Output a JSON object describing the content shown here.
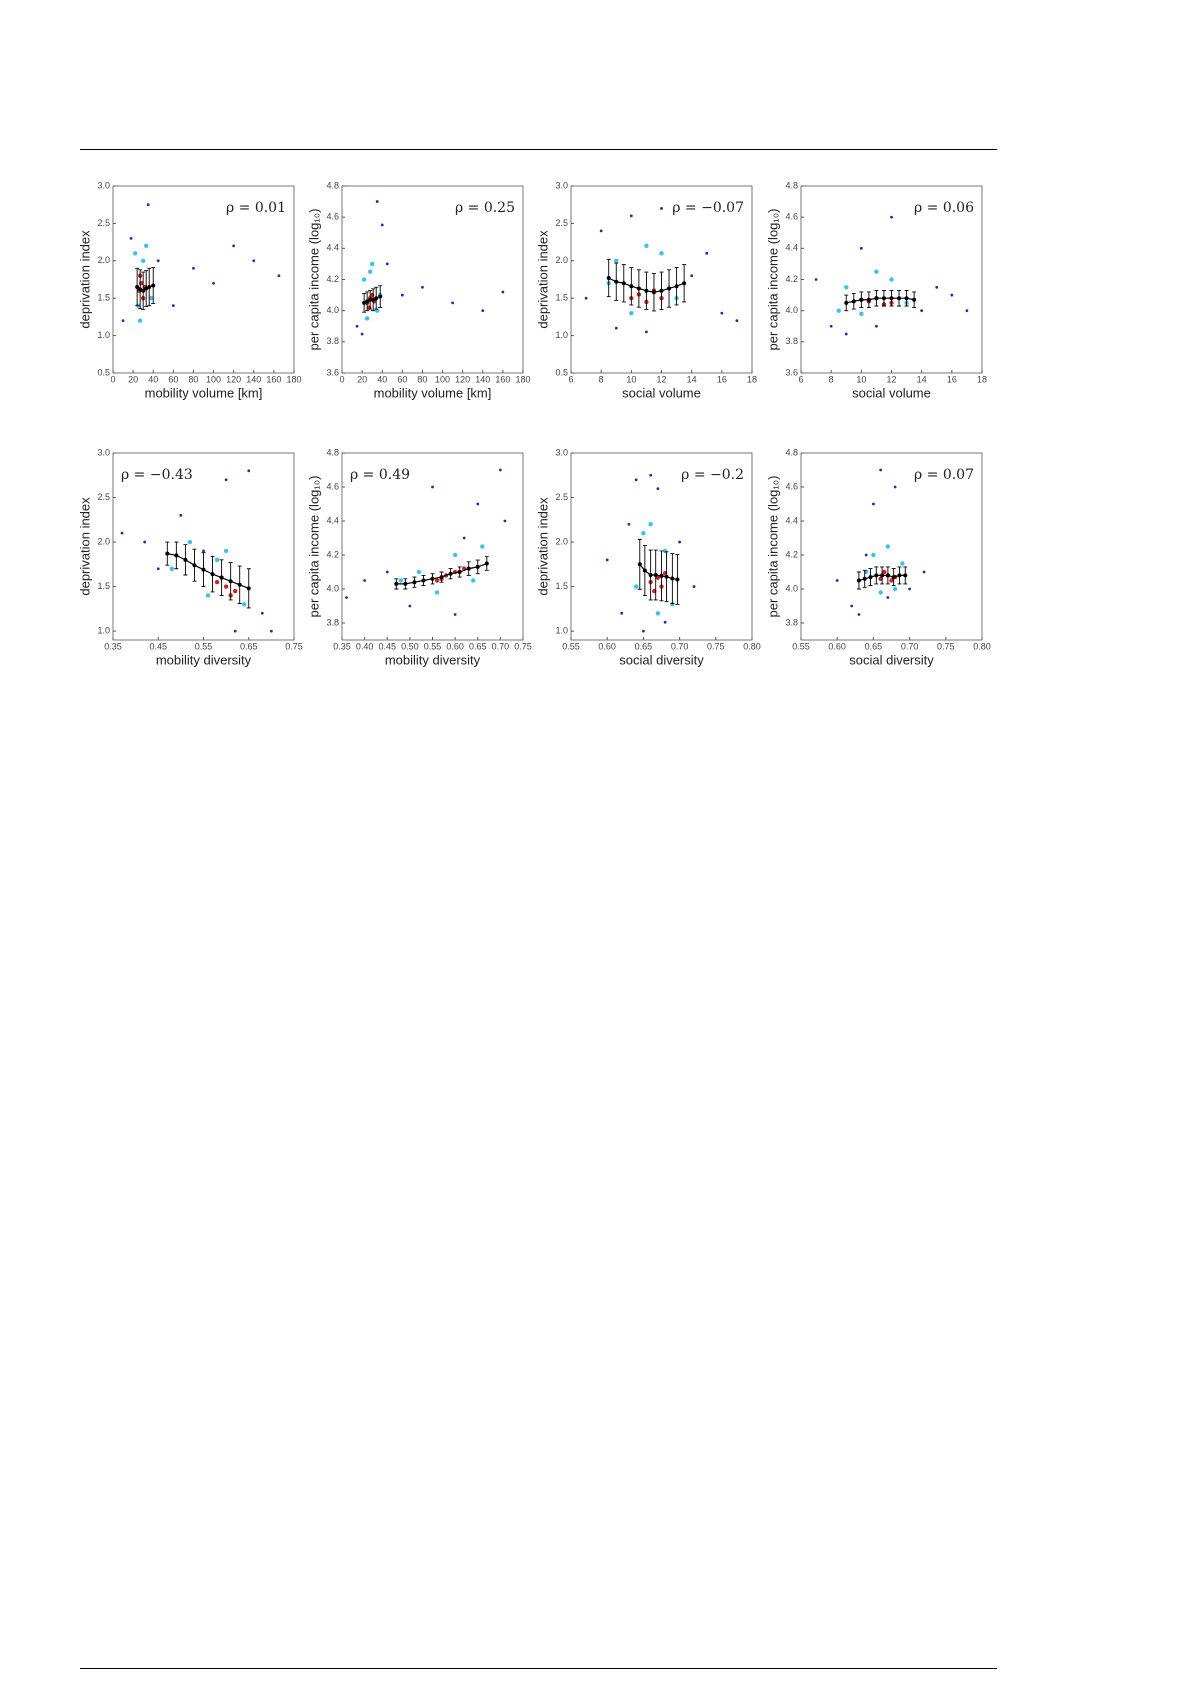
{
  "chart_data": [
    {
      "type": "scatter",
      "xlabel": "mobility volume [km]",
      "ylabel": "deprivation index",
      "annotation": "ρ = 0.01",
      "annotation_corner": "upper right",
      "xlim": [
        0,
        180
      ],
      "xticks": [
        0,
        20,
        40,
        60,
        80,
        100,
        120,
        140,
        160,
        180
      ],
      "ylim": [
        0.5,
        3.0
      ],
      "yticks": [
        0.5,
        {
          "value": 1,
          "label": "1.0"
        },
        1.5,
        {
          "value": 2,
          "label": "2.0"
        },
        2.5,
        {
          "value": 3,
          "label": "3.0"
        }
      ],
      "series": [
        {
          "color": "#2626b8",
          "x": [
            10,
            18,
            45,
            60,
            80,
            100,
            120,
            140,
            165,
            35
          ],
          "values": [
            1.2,
            2.3,
            2.0,
            1.4,
            1.9,
            1.7,
            2.2,
            2.0,
            1.8,
            2.75
          ]
        },
        {
          "color": "#35c4ee",
          "x": [
            22,
            27,
            33,
            38,
            25,
            30
          ],
          "values": [
            2.1,
            1.2,
            2.2,
            1.5,
            1.4,
            2.0
          ]
        },
        {
          "color": "#d4221a",
          "x": [
            26,
            28,
            30,
            27,
            32
          ],
          "values": [
            1.6,
            1.7,
            1.5,
            1.8,
            1.65
          ]
        }
      ],
      "mean": {
        "color": "#000000",
        "x": [
          24,
          27,
          30,
          33,
          36,
          40
        ],
        "values": [
          1.65,
          1.62,
          1.6,
          1.63,
          1.65,
          1.67
        ],
        "errors": [
          0.25,
          0.26,
          0.25,
          0.24,
          0.25,
          0.24
        ]
      }
    },
    {
      "type": "scatter",
      "xlabel": "mobility volume [km]",
      "ylabel": "per capita income (log₁₀)",
      "annotation": "ρ = 0.25",
      "annotation_corner": "upper right",
      "xlim": [
        0,
        180
      ],
      "xticks": [
        0,
        20,
        40,
        60,
        80,
        100,
        120,
        140,
        160,
        180
      ],
      "ylim": [
        3.6,
        4.8
      ],
      "yticks": [
        3.6,
        3.8,
        {
          "value": 4,
          "label": "4.0"
        },
        4.2,
        4.4,
        4.6,
        4.8
      ],
      "series": [
        {
          "color": "#2626b8",
          "x": [
            15,
            20,
            45,
            60,
            80,
            110,
            140,
            160,
            40,
            35
          ],
          "values": [
            3.9,
            3.85,
            4.3,
            4.1,
            4.15,
            4.05,
            4.0,
            4.12,
            4.55,
            4.7
          ]
        },
        {
          "color": "#35c4ee",
          "x": [
            22,
            25,
            30,
            35,
            28,
            38
          ],
          "values": [
            4.2,
            3.95,
            4.3,
            4.0,
            4.25,
            4.1
          ]
        },
        {
          "color": "#d4221a",
          "x": [
            25,
            28,
            30,
            27,
            32
          ],
          "values": [
            4.05,
            4.08,
            4.1,
            4.02,
            4.06
          ]
        }
      ],
      "mean": {
        "color": "#000000",
        "x": [
          22,
          25,
          28,
          31,
          34,
          38
        ],
        "values": [
          4.05,
          4.06,
          4.07,
          4.07,
          4.08,
          4.09
        ],
        "errors": [
          0.06,
          0.06,
          0.06,
          0.07,
          0.07,
          0.07
        ]
      }
    },
    {
      "type": "scatter",
      "xlabel": "social volume",
      "ylabel": "deprivation index",
      "annotation": "ρ = −0.07",
      "annotation_corner": "upper right",
      "xlim": [
        6,
        18
      ],
      "xticks": [
        6,
        8,
        10,
        12,
        14,
        16,
        18
      ],
      "ylim": [
        0.5,
        3.0
      ],
      "yticks": [
        0.5,
        {
          "value": 1,
          "label": "1.0"
        },
        1.5,
        {
          "value": 2,
          "label": "2.0"
        },
        2.5,
        {
          "value": 3,
          "label": "3.0"
        }
      ],
      "series": [
        {
          "color": "#2626b8",
          "x": [
            7,
            8,
            9,
            12,
            14,
            15,
            16,
            17,
            10,
            11
          ],
          "values": [
            1.5,
            2.4,
            1.1,
            2.7,
            1.8,
            2.1,
            1.3,
            1.2,
            2.6,
            1.05
          ]
        },
        {
          "color": "#35c4ee",
          "x": [
            9,
            10,
            12,
            13,
            11,
            8.5
          ],
          "values": [
            2.0,
            1.3,
            2.1,
            1.5,
            2.2,
            1.7
          ]
        },
        {
          "color": "#d4221a",
          "x": [
            10.5,
            11,
            11.5,
            10,
            12
          ],
          "values": [
            1.55,
            1.45,
            1.6,
            1.5,
            1.5
          ]
        }
      ],
      "mean": {
        "color": "#000000",
        "x": [
          8.5,
          9,
          9.5,
          10,
          10.5,
          11,
          11.5,
          12,
          12.5,
          13,
          13.5
        ],
        "values": [
          1.77,
          1.72,
          1.7,
          1.66,
          1.63,
          1.6,
          1.58,
          1.6,
          1.63,
          1.66,
          1.7
        ],
        "errors": [
          0.25,
          0.25,
          0.25,
          0.25,
          0.25,
          0.25,
          0.25,
          0.25,
          0.25,
          0.25,
          0.25
        ]
      }
    },
    {
      "type": "scatter",
      "xlabel": "social volume",
      "ylabel": "per capita income (log₁₀)",
      "annotation": "ρ = 0.06",
      "annotation_corner": "upper right",
      "xlim": [
        6,
        18
      ],
      "xticks": [
        6,
        8,
        10,
        12,
        14,
        16,
        18
      ],
      "ylim": [
        3.6,
        4.8
      ],
      "yticks": [
        3.6,
        3.8,
        {
          "value": 4,
          "label": "4.0"
        },
        4.2,
        4.4,
        4.6,
        4.8
      ],
      "series": [
        {
          "color": "#2626b8",
          "x": [
            7,
            8,
            9,
            12,
            14,
            15,
            16,
            17,
            10,
            11
          ],
          "values": [
            4.2,
            3.9,
            3.85,
            4.6,
            4.0,
            4.15,
            4.1,
            4.0,
            4.4,
            3.9
          ]
        },
        {
          "color": "#35c4ee",
          "x": [
            9,
            10,
            12,
            13,
            11,
            8.5
          ],
          "values": [
            4.15,
            3.98,
            4.2,
            4.05,
            4.25,
            4.0
          ]
        },
        {
          "color": "#d4221a",
          "x": [
            10.5,
            11,
            11.5,
            10,
            12
          ],
          "values": [
            4.06,
            4.08,
            4.04,
            4.07,
            4.05
          ]
        }
      ],
      "mean": {
        "color": "#000000",
        "x": [
          9,
          9.5,
          10,
          10.5,
          11,
          11.5,
          12,
          12.5,
          13,
          13.5
        ],
        "values": [
          4.05,
          4.06,
          4.07,
          4.07,
          4.08,
          4.08,
          4.08,
          4.08,
          4.08,
          4.07
        ],
        "errors": [
          0.05,
          0.05,
          0.05,
          0.05,
          0.05,
          0.05,
          0.05,
          0.05,
          0.05,
          0.05
        ]
      }
    },
    {
      "type": "scatter",
      "xlabel": "mobility diversity",
      "ylabel": "deprivation index",
      "annotation": "ρ = −0.43",
      "annotation_corner": "upper left",
      "xlim": [
        0.35,
        0.75
      ],
      "xticks": [
        0.35,
        0.45,
        0.55,
        0.65,
        0.75
      ],
      "ylim": [
        0.9,
        3.0
      ],
      "yticks": [
        {
          "value": 1,
          "label": "1.0"
        },
        1.5,
        {
          "value": 2,
          "label": "2.0"
        },
        2.5,
        {
          "value": 3,
          "label": "3.0"
        }
      ],
      "series": [
        {
          "color": "#2626b8",
          "x": [
            0.37,
            0.42,
            0.45,
            0.5,
            0.6,
            0.65,
            0.68,
            0.7,
            0.55,
            0.62
          ],
          "values": [
            2.1,
            2.0,
            1.7,
            2.3,
            2.7,
            2.8,
            1.2,
            1.0,
            1.9,
            1.0
          ]
        },
        {
          "color": "#35c4ee",
          "x": [
            0.48,
            0.52,
            0.56,
            0.6,
            0.64,
            0.58
          ],
          "values": [
            1.7,
            2.0,
            1.4,
            1.9,
            1.3,
            1.8
          ]
        },
        {
          "color": "#d4221a",
          "x": [
            0.58,
            0.6,
            0.62,
            0.59,
            0.61
          ],
          "values": [
            1.55,
            1.5,
            1.45,
            1.6,
            1.4
          ]
        }
      ],
      "mean": {
        "color": "#000000",
        "x": [
          0.47,
          0.49,
          0.51,
          0.53,
          0.55,
          0.57,
          0.59,
          0.61,
          0.63,
          0.65
        ],
        "values": [
          1.87,
          1.85,
          1.8,
          1.74,
          1.69,
          1.64,
          1.6,
          1.56,
          1.52,
          1.48
        ],
        "errors": [
          0.13,
          0.15,
          0.17,
          0.18,
          0.19,
          0.2,
          0.2,
          0.21,
          0.21,
          0.22
        ]
      }
    },
    {
      "type": "scatter",
      "xlabel": "mobility diversity",
      "ylabel": "per capita income (log₁₀)",
      "annotation": "ρ = 0.49",
      "annotation_corner": "upper left",
      "xlim": [
        0.35,
        0.75
      ],
      "xticks": [
        0.35,
        {
          "value": 0.4,
          "label": "0.40"
        },
        0.45,
        {
          "value": 0.5,
          "label": "0.50"
        },
        0.55,
        {
          "value": 0.6,
          "label": "0.60"
        },
        0.65,
        {
          "value": 0.7,
          "label": "0.70"
        },
        0.75
      ],
      "ylim": [
        3.7,
        4.8
      ],
      "yticks": [
        3.8,
        {
          "value": 4,
          "label": "4.0"
        },
        4.2,
        4.4,
        4.6,
        4.8
      ],
      "series": [
        {
          "color": "#2626b8",
          "x": [
            0.36,
            0.4,
            0.45,
            0.5,
            0.55,
            0.6,
            0.65,
            0.7,
            0.71,
            0.62
          ],
          "values": [
            3.95,
            4.05,
            4.1,
            3.9,
            4.6,
            3.85,
            4.5,
            4.7,
            4.4,
            4.3
          ]
        },
        {
          "color": "#35c4ee",
          "x": [
            0.48,
            0.52,
            0.56,
            0.6,
            0.64,
            0.66
          ],
          "values": [
            4.05,
            4.1,
            3.98,
            4.2,
            4.05,
            4.25
          ]
        },
        {
          "color": "#d4221a",
          "x": [
            0.56,
            0.58,
            0.6,
            0.57,
            0.62
          ],
          "values": [
            4.05,
            4.08,
            4.1,
            4.06,
            4.12
          ]
        }
      ],
      "mean": {
        "color": "#000000",
        "x": [
          0.47,
          0.49,
          0.51,
          0.53,
          0.55,
          0.57,
          0.59,
          0.61,
          0.63,
          0.65,
          0.67
        ],
        "values": [
          4.03,
          4.03,
          4.04,
          4.05,
          4.06,
          4.07,
          4.09,
          4.1,
          4.12,
          4.13,
          4.15
        ],
        "errors": [
          0.03,
          0.03,
          0.03,
          0.03,
          0.03,
          0.03,
          0.03,
          0.03,
          0.04,
          0.04,
          0.04
        ]
      }
    },
    {
      "type": "scatter",
      "xlabel": "social diversity",
      "ylabel": "deprivation index",
      "annotation": "ρ = −0.2",
      "annotation_corner": "upper right",
      "xlim": [
        0.55,
        0.8
      ],
      "xticks": [
        0.55,
        {
          "value": 0.6,
          "label": "0.60"
        },
        0.65,
        {
          "value": 0.7,
          "label": "0.70"
        },
        0.75,
        {
          "value": 0.8,
          "label": "0.80"
        }
      ],
      "ylim": [
        0.9,
        3.0
      ],
      "yticks": [
        {
          "value": 1,
          "label": "1.0"
        },
        1.5,
        {
          "value": 2,
          "label": "2.0"
        },
        2.5,
        {
          "value": 3,
          "label": "3.0"
        }
      ],
      "series": [
        {
          "color": "#2626b8",
          "x": [
            0.6,
            0.62,
            0.63,
            0.64,
            0.66,
            0.68,
            0.7,
            0.72,
            0.65,
            0.67
          ],
          "values": [
            1.8,
            1.2,
            2.2,
            2.7,
            2.75,
            1.1,
            2.0,
            1.5,
            1.0,
            2.6
          ]
        },
        {
          "color": "#35c4ee",
          "x": [
            0.64,
            0.65,
            0.68,
            0.69,
            0.66,
            0.67
          ],
          "values": [
            1.5,
            2.1,
            1.9,
            1.3,
            2.2,
            1.2
          ]
        },
        {
          "color": "#d4221a",
          "x": [
            0.66,
            0.67,
            0.675,
            0.665,
            0.68
          ],
          "values": [
            1.55,
            1.6,
            1.5,
            1.45,
            1.65
          ]
        }
      ],
      "mean": {
        "color": "#000000",
        "x": [
          0.645,
          0.652,
          0.66,
          0.667,
          0.675,
          0.682,
          0.69,
          0.697
        ],
        "values": [
          1.75,
          1.68,
          1.63,
          1.63,
          1.62,
          1.61,
          1.59,
          1.58
        ],
        "errors": [
          0.28,
          0.28,
          0.28,
          0.28,
          0.28,
          0.28,
          0.28,
          0.28
        ]
      }
    },
    {
      "type": "scatter",
      "xlabel": "social diversity",
      "ylabel": "per capita income (log₁₀)",
      "annotation": "ρ = 0.07",
      "annotation_corner": "upper right",
      "xlim": [
        0.55,
        0.8
      ],
      "xticks": [
        0.55,
        {
          "value": 0.6,
          "label": "0.60"
        },
        0.65,
        {
          "value": 0.7,
          "label": "0.70"
        },
        0.75,
        {
          "value": 0.8,
          "label": "0.80"
        }
      ],
      "ylim": [
        3.7,
        4.8
      ],
      "yticks": [
        3.8,
        {
          "value": 4,
          "label": "4.0"
        },
        4.2,
        4.4,
        4.6,
        4.8
      ],
      "series": [
        {
          "color": "#2626b8",
          "x": [
            0.6,
            0.62,
            0.63,
            0.64,
            0.66,
            0.68,
            0.7,
            0.72,
            0.65,
            0.67
          ],
          "values": [
            4.05,
            3.9,
            3.85,
            4.2,
            4.7,
            4.6,
            4.0,
            4.1,
            4.5,
            3.95
          ]
        },
        {
          "color": "#35c4ee",
          "x": [
            0.64,
            0.65,
            0.68,
            0.69,
            0.66,
            0.67
          ],
          "values": [
            4.1,
            4.2,
            4.0,
            4.15,
            3.98,
            4.25
          ]
        },
        {
          "color": "#d4221a",
          "x": [
            0.66,
            0.67,
            0.675,
            0.665,
            0.68
          ],
          "values": [
            4.06,
            4.08,
            4.05,
            4.1,
            4.07
          ]
        }
      ],
      "mean": {
        "color": "#000000",
        "x": [
          0.63,
          0.638,
          0.646,
          0.654,
          0.662,
          0.67,
          0.678,
          0.686,
          0.694
        ],
        "values": [
          4.05,
          4.06,
          4.07,
          4.08,
          4.08,
          4.08,
          4.07,
          4.08,
          4.08
        ],
        "errors": [
          0.05,
          0.05,
          0.05,
          0.05,
          0.05,
          0.05,
          0.05,
          0.05,
          0.05
        ]
      }
    }
  ]
}
